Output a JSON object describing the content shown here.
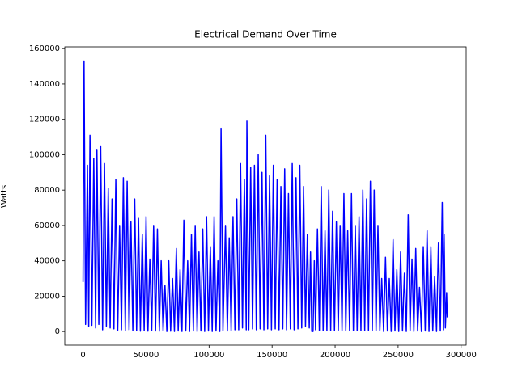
{
  "chart_data": {
    "type": "line",
    "title": "Electrical Demand Over Time",
    "y_label": "Watts",
    "color": "#0000ff",
    "x": [
      0,
      800,
      2000,
      3500,
      4500,
      5500,
      7000,
      8500,
      10000,
      11000,
      12500,
      14000,
      15500,
      17000,
      18500,
      20000,
      21500,
      23000,
      24500,
      26000,
      27500,
      29000,
      30500,
      32000,
      33500,
      35000,
      36500,
      38000,
      39500,
      41000,
      42500,
      44000,
      45500,
      47000,
      48500,
      50000,
      51500,
      53000,
      54500,
      56000,
      57500,
      59000,
      60500,
      62000,
      63500,
      65000,
      66500,
      68000,
      69500,
      71000,
      72500,
      74000,
      75500,
      77000,
      78500,
      80000,
      81500,
      83000,
      84500,
      86000,
      87500,
      89000,
      90500,
      92000,
      93500,
      95000,
      96500,
      98000,
      99500,
      101000,
      102500,
      104000,
      105500,
      107000,
      108500,
      109500,
      111000,
      113000,
      114500,
      116000,
      117500,
      119000,
      120500,
      122000,
      123500,
      125000,
      126500,
      128000,
      129500,
      130000,
      131500,
      133000,
      134500,
      136000,
      137500,
      139000,
      140500,
      142000,
      143500,
      145000,
      146500,
      148000,
      149500,
      151000,
      152500,
      154000,
      155500,
      157000,
      158500,
      160000,
      161500,
      163000,
      164500,
      166000,
      167500,
      169000,
      170500,
      172000,
      173500,
      175000,
      176500,
      178000,
      179500,
      180500,
      181500,
      182500,
      183500,
      184500,
      186000,
      187500,
      189000,
      190500,
      192000,
      193500,
      195000,
      196500,
      198000,
      199500,
      201000,
      202500,
      204000,
      205500,
      207000,
      208500,
      210000,
      211500,
      213000,
      214500,
      216000,
      217500,
      219000,
      220500,
      222000,
      223500,
      225000,
      226500,
      228000,
      229500,
      231000,
      232500,
      234000,
      235500,
      237000,
      238500,
      240000,
      241500,
      243000,
      244500,
      246000,
      247500,
      249000,
      250500,
      252000,
      253500,
      255000,
      256500,
      258000,
      259500,
      261000,
      262500,
      264000,
      265500,
      267000,
      268500,
      270000,
      271500,
      273000,
      274500,
      276000,
      277500,
      279000,
      280500,
      282000,
      283500,
      285000,
      286000,
      286500,
      287500,
      288500,
      289000
    ],
    "values": [
      28000,
      153000,
      4000,
      94000,
      3000,
      111000,
      3500,
      98000,
      2000,
      103000,
      4000,
      105000,
      1000,
      95000,
      3000,
      81000,
      2000,
      75000,
      1500,
      86000,
      500,
      60000,
      1000,
      87000,
      500,
      85000,
      1000,
      62000,
      500,
      75000,
      500,
      64000,
      200,
      55000,
      500,
      65000,
      200,
      41000,
      500,
      60000,
      300,
      58000,
      200,
      40000,
      500,
      26000,
      0,
      40000,
      200,
      30000,
      0,
      47000,
      300,
      35000,
      0,
      63000,
      300,
      40000,
      0,
      55000,
      300,
      60000,
      0,
      45000,
      300,
      58000,
      0,
      65000,
      300,
      48000,
      0,
      65000,
      300,
      40000,
      0,
      115000,
      500,
      60000,
      300,
      53000,
      500,
      65000,
      1000,
      75000,
      1000,
      95000,
      2000,
      86000,
      1000,
      119000,
      1000,
      93000,
      1500,
      94000,
      1000,
      100000,
      1500,
      90000,
      1000,
      111000,
      1500,
      88000,
      1000,
      94000,
      1500,
      86000,
      1000,
      82000,
      1500,
      92000,
      1000,
      78000,
      1500,
      95000,
      1000,
      87000,
      1500,
      94000,
      2000,
      82000,
      3000,
      55000,
      2000,
      45000,
      0,
      0,
      40000,
      1000,
      58000,
      500,
      82000,
      500,
      57000,
      500,
      80000,
      500,
      68000,
      500,
      62000,
      500,
      60000,
      500,
      78000,
      500,
      57000,
      500,
      78000,
      500,
      60000,
      500,
      65000,
      500,
      80000,
      500,
      75000,
      500,
      85000,
      500,
      80000,
      500,
      60000,
      500,
      30000,
      0,
      42000,
      300,
      30000,
      0,
      52000,
      300,
      35000,
      0,
      45000,
      300,
      33000,
      0,
      66000,
      300,
      41000,
      0,
      47000,
      300,
      25000,
      0,
      48000,
      300,
      57000,
      0,
      48000,
      300,
      31000,
      0,
      50000,
      300,
      73000,
      1000,
      55000,
      2000,
      22000,
      8000
    ],
    "xlim": [
      -14500,
      304000
    ],
    "ylim": [
      -7700,
      161000
    ],
    "xticks": [
      0,
      50000,
      100000,
      150000,
      200000,
      250000,
      300000
    ],
    "yticks": [
      0,
      20000,
      40000,
      60000,
      80000,
      100000,
      120000,
      140000,
      160000
    ]
  }
}
